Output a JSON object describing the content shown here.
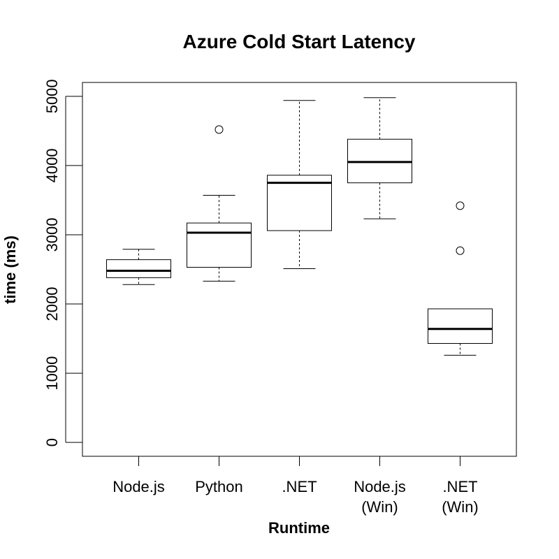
{
  "chart_data": {
    "type": "boxplot",
    "title": "Azure Cold Start Latency",
    "xlabel": "Runtime",
    "ylabel": "time (ms)",
    "ylim": [
      -200,
      5200
    ],
    "yticks": [
      0,
      1000,
      2000,
      3000,
      4000,
      5000
    ],
    "categories": [
      [
        "Node.js"
      ],
      [
        "Python"
      ],
      [
        ".NET"
      ],
      [
        "Node.js",
        "(Win)"
      ],
      [
        ".NET",
        "(Win)"
      ]
    ],
    "boxes": [
      {
        "whisker_low": 2280,
        "q1": 2380,
        "median": 2480,
        "q3": 2640,
        "whisker_high": 2790,
        "outliers": []
      },
      {
        "whisker_low": 2330,
        "q1": 2530,
        "median": 3030,
        "q3": 3170,
        "whisker_high": 3570,
        "outliers": [
          4520
        ]
      },
      {
        "whisker_low": 2510,
        "q1": 3060,
        "median": 3750,
        "q3": 3860,
        "whisker_high": 4940,
        "outliers": []
      },
      {
        "whisker_low": 3230,
        "q1": 3750,
        "median": 4050,
        "q3": 4380,
        "whisker_high": 4980,
        "outliers": []
      },
      {
        "whisker_low": 1260,
        "q1": 1430,
        "median": 1640,
        "q3": 1930,
        "whisker_high": 1930,
        "outliers": [
          2770,
          3420
        ]
      }
    ],
    "grid": false,
    "legend": "none"
  }
}
